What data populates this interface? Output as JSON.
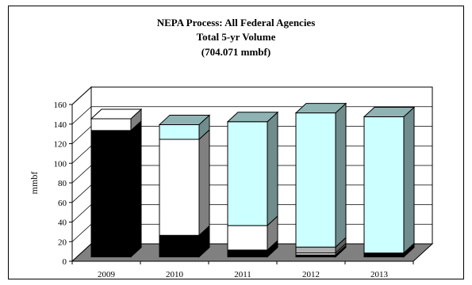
{
  "chart_data": {
    "type": "bar",
    "stacked": true,
    "three_d": true,
    "title_lines": [
      "NEPA Process: All Federal Agencies",
      "Total 5-yr Volume",
      "(704.071 mmbf)"
    ],
    "xlabel": "",
    "ylabel": "mmbf",
    "ylim": [
      0,
      160
    ],
    "yticks": [
      0,
      20,
      40,
      60,
      80,
      100,
      120,
      140,
      160
    ],
    "grid": true,
    "legend": "none",
    "categories": [
      "2009",
      "2010",
      "2011",
      "2012",
      "2013"
    ],
    "series": [
      {
        "color": "#000000",
        "values": [
          129,
          22,
          7,
          2,
          4
        ]
      },
      {
        "color": "#ffffff",
        "values": [
          12,
          98,
          25,
          2,
          0
        ]
      },
      {
        "color": "#b0b0b0",
        "values": [
          0,
          0,
          0,
          6,
          0
        ]
      },
      {
        "color": "#ccffff",
        "values": [
          0,
          15,
          106,
          137,
          139
        ]
      }
    ]
  },
  "colors": {
    "floor": "#808080",
    "wall": "#ffffff",
    "side_shade": "#808080"
  }
}
